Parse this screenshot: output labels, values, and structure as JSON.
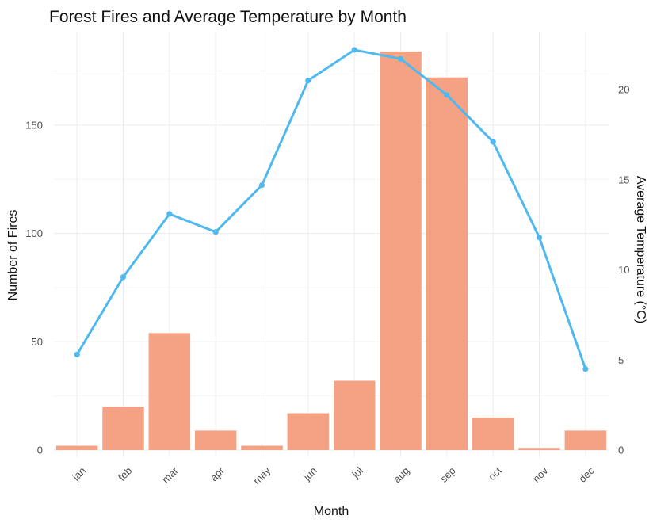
{
  "chart_data": {
    "type": "bar",
    "title": "Forest Fires and Average Temperature by Month",
    "xlabel": "Month",
    "ylabel": "Number of Fires",
    "y2label": "Average Temperature (°C)",
    "categories": [
      "jan",
      "feb",
      "mar",
      "apr",
      "may",
      "jun",
      "jul",
      "aug",
      "sep",
      "oct",
      "nov",
      "dec"
    ],
    "ylim": [
      0,
      190
    ],
    "y2lim": [
      0,
      22.6
    ],
    "yticks": [
      0,
      50,
      100,
      150
    ],
    "y2ticks": [
      0,
      5,
      10,
      15,
      20
    ],
    "series": [
      {
        "type": "bar",
        "axis": "left",
        "values": [
          2,
          20,
          54,
          9,
          2,
          17,
          32,
          184,
          172,
          15,
          1,
          9
        ]
      },
      {
        "type": "line",
        "axis": "right",
        "values": [
          5.3,
          9.6,
          13.1,
          12.1,
          14.7,
          20.5,
          22.2,
          21.7,
          19.7,
          17.1,
          11.8,
          4.5
        ]
      }
    ],
    "colors": {
      "bar": "#f4a283",
      "line": "#4fb9ef"
    },
    "grid": true,
    "legend": "none"
  }
}
